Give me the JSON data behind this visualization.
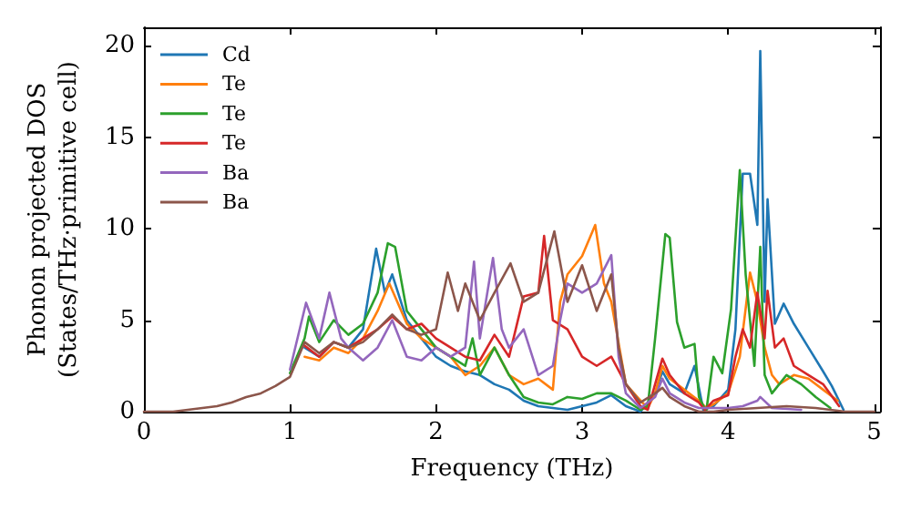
{
  "chart_data": {
    "type": "line",
    "xlabel": "Frequency (THz)",
    "ylabel": "Phonon projected DOS\n(States/THz·primitive cell)",
    "xlim": [
      0,
      5.04
    ],
    "xticks": [
      0,
      1,
      2,
      3,
      4,
      5
    ],
    "ylim": [
      0,
      21
    ],
    "yticks": [
      0,
      5,
      10,
      15,
      20
    ],
    "grid": false,
    "legend": "top left",
    "marker": "none",
    "line_style": "solid",
    "series": [
      {
        "name": "Cd",
        "color": "#1f77b4",
        "x": [
          1.1,
          1.2,
          1.3,
          1.4,
          1.5,
          1.59,
          1.65,
          1.7,
          1.8,
          1.9,
          2.0,
          2.1,
          2.2,
          2.3,
          2.4,
          2.5,
          2.6,
          2.7,
          2.8,
          2.9,
          3.0,
          3.1,
          3.2,
          3.3,
          3.4,
          3.5,
          3.55,
          3.6,
          3.7,
          3.77,
          3.83,
          3.9,
          4.0,
          4.05,
          4.1,
          4.15,
          4.2,
          4.22,
          4.25,
          4.27,
          4.32,
          4.38,
          4.45,
          4.55,
          4.65,
          4.71,
          4.79
        ],
        "values": [
          3.5,
          3.0,
          3.8,
          3.5,
          4.5,
          8.9,
          6.5,
          7.5,
          5.0,
          4.0,
          3.0,
          2.5,
          2.2,
          2.0,
          1.5,
          1.2,
          0.6,
          0.3,
          0.2,
          0.1,
          0.3,
          0.5,
          0.9,
          0.3,
          0,
          1.0,
          2.2,
          1.5,
          1.0,
          2.5,
          0.1,
          0.3,
          1.2,
          4.5,
          13.0,
          13.0,
          10.2,
          19.7,
          6.0,
          11.6,
          4.8,
          5.9,
          4.8,
          3.5,
          2.2,
          1.4,
          0.1
        ]
      },
      {
        "name": "Te",
        "color": "#ff7f0e",
        "x": [
          1.1,
          1.2,
          1.3,
          1.4,
          1.5,
          1.6,
          1.68,
          1.8,
          1.9,
          2.0,
          2.1,
          2.2,
          2.3,
          2.4,
          2.5,
          2.6,
          2.7,
          2.8,
          2.85,
          2.9,
          3.0,
          3.09,
          3.15,
          3.2,
          3.3,
          3.4,
          3.45,
          3.5,
          3.55,
          3.6,
          3.7,
          3.8,
          3.85,
          3.9,
          4.0,
          4.08,
          4.15,
          4.2,
          4.25,
          4.3,
          4.35,
          4.45,
          4.55,
          4.65,
          4.75
        ],
        "values": [
          3.0,
          2.8,
          3.5,
          3.2,
          4.0,
          5.5,
          7.0,
          4.8,
          4.0,
          3.5,
          3.0,
          2.0,
          2.5,
          3.5,
          2.0,
          1.5,
          1.8,
          1.2,
          6.0,
          7.5,
          8.5,
          10.2,
          7.0,
          6.0,
          1.5,
          0.6,
          0.2,
          1.0,
          2.5,
          1.8,
          1.2,
          0.6,
          0.2,
          0.4,
          1.0,
          3.0,
          7.6,
          6.0,
          3.5,
          2.0,
          1.5,
          2.0,
          1.8,
          1.2,
          0.6
        ]
      },
      {
        "name": "Te",
        "color": "#2ca02c",
        "x": [
          1.0,
          1.1,
          1.13,
          1.2,
          1.3,
          1.4,
          1.5,
          1.6,
          1.67,
          1.72,
          1.8,
          1.9,
          2.0,
          2.1,
          2.2,
          2.25,
          2.3,
          2.4,
          2.5,
          2.6,
          2.7,
          2.8,
          2.9,
          3.0,
          3.1,
          3.2,
          3.3,
          3.4,
          3.45,
          3.5,
          3.57,
          3.6,
          3.65,
          3.7,
          3.77,
          3.8,
          3.85,
          3.9,
          3.96,
          4.02,
          4.08,
          4.12,
          4.18,
          4.22,
          4.25,
          4.3,
          4.35,
          4.4,
          4.5,
          4.6,
          4.7
        ],
        "values": [
          2.1,
          4.0,
          5.2,
          3.8,
          5.0,
          4.2,
          4.8,
          6.5,
          9.2,
          9.0,
          5.5,
          4.5,
          3.5,
          3.0,
          2.5,
          4.0,
          2.0,
          3.5,
          2.0,
          0.8,
          0.5,
          0.4,
          0.8,
          0.7,
          1.0,
          1.0,
          0.6,
          0.1,
          0.3,
          4.0,
          9.7,
          9.5,
          4.9,
          3.5,
          3.7,
          0.8,
          0,
          3.0,
          2.1,
          5.6,
          13.2,
          7.5,
          2.5,
          9.0,
          2.0,
          1.0,
          1.5,
          2.0,
          1.5,
          0.8,
          0.2
        ]
      },
      {
        "name": "Te",
        "color": "#d62728",
        "x": [
          1.1,
          1.2,
          1.3,
          1.4,
          1.5,
          1.6,
          1.7,
          1.8,
          1.9,
          2.0,
          2.1,
          2.2,
          2.3,
          2.4,
          2.5,
          2.6,
          2.7,
          2.74,
          2.8,
          2.9,
          3.0,
          3.1,
          3.2,
          3.3,
          3.4,
          3.45,
          3.5,
          3.55,
          3.6,
          3.7,
          3.8,
          3.84,
          3.9,
          4.0,
          4.05,
          4.1,
          4.15,
          4.2,
          4.25,
          4.27,
          4.32,
          4.38,
          4.45,
          4.55,
          4.65,
          4.76
        ],
        "values": [
          3.6,
          3.0,
          3.8,
          3.5,
          4.0,
          4.5,
          5.2,
          4.5,
          4.8,
          4.0,
          3.5,
          3.0,
          2.8,
          4.2,
          3.0,
          6.3,
          6.5,
          9.6,
          5.0,
          4.5,
          3.0,
          2.5,
          3.0,
          1.5,
          0.3,
          0.1,
          1.5,
          2.9,
          2.0,
          1.0,
          0.5,
          0.1,
          0.6,
          0.9,
          3.0,
          4.5,
          3.5,
          6.5,
          4.0,
          6.6,
          3.5,
          4.0,
          2.5,
          2.0,
          1.5,
          0.3
        ]
      },
      {
        "name": "Ba",
        "color": "#9467bd",
        "x": [
          1.0,
          1.11,
          1.2,
          1.27,
          1.35,
          1.4,
          1.5,
          1.6,
          1.7,
          1.8,
          1.9,
          2.0,
          2.1,
          2.2,
          2.26,
          2.3,
          2.39,
          2.45,
          2.5,
          2.6,
          2.7,
          2.8,
          2.85,
          2.9,
          3.0,
          3.1,
          3.2,
          3.25,
          3.3,
          3.4,
          3.5,
          3.55,
          3.6,
          3.7,
          3.8,
          3.9,
          4.0,
          4.1,
          4.2,
          4.22,
          4.3,
          4.5
        ],
        "values": [
          2.3,
          5.95,
          4.0,
          6.5,
          4.0,
          3.5,
          2.8,
          3.5,
          5.0,
          3.0,
          2.8,
          3.5,
          3.0,
          3.5,
          8.2,
          4.0,
          8.4,
          4.5,
          3.5,
          4.5,
          2.0,
          2.5,
          5.0,
          7.0,
          6.5,
          7.0,
          8.55,
          3.0,
          1.0,
          0.2,
          0.8,
          1.8,
          1.0,
          0.5,
          0.2,
          0.2,
          0.2,
          0.3,
          0.6,
          0.8,
          0.2,
          0.1
        ]
      },
      {
        "name": "Ba",
        "color": "#8c564b",
        "x": [
          0,
          0.1,
          0.2,
          0.3,
          0.4,
          0.5,
          0.6,
          0.7,
          0.8,
          0.9,
          1.0,
          1.1,
          1.2,
          1.3,
          1.4,
          1.5,
          1.6,
          1.7,
          1.8,
          1.9,
          2.0,
          2.08,
          2.15,
          2.2,
          2.3,
          2.4,
          2.51,
          2.6,
          2.7,
          2.81,
          2.9,
          3.0,
          3.1,
          3.2,
          3.25,
          3.3,
          3.4,
          3.5,
          3.55,
          3.6,
          3.7,
          3.8,
          3.9,
          4.0,
          4.2,
          4.4,
          4.6,
          4.8,
          5.0
        ],
        "values": [
          0,
          0,
          0,
          0.1,
          0.2,
          0.3,
          0.5,
          0.8,
          1.0,
          1.4,
          1.9,
          3.8,
          3.2,
          3.8,
          3.5,
          3.8,
          4.5,
          5.3,
          4.5,
          4.2,
          4.5,
          7.6,
          5.5,
          7.0,
          5.0,
          6.5,
          8.1,
          6.0,
          6.5,
          9.85,
          6.0,
          8.0,
          5.5,
          7.5,
          3.5,
          1.5,
          0.5,
          1.0,
          1.3,
          0.8,
          0.3,
          0,
          0,
          0.1,
          0.2,
          0.3,
          0.2,
          0,
          0
        ]
      }
    ]
  }
}
